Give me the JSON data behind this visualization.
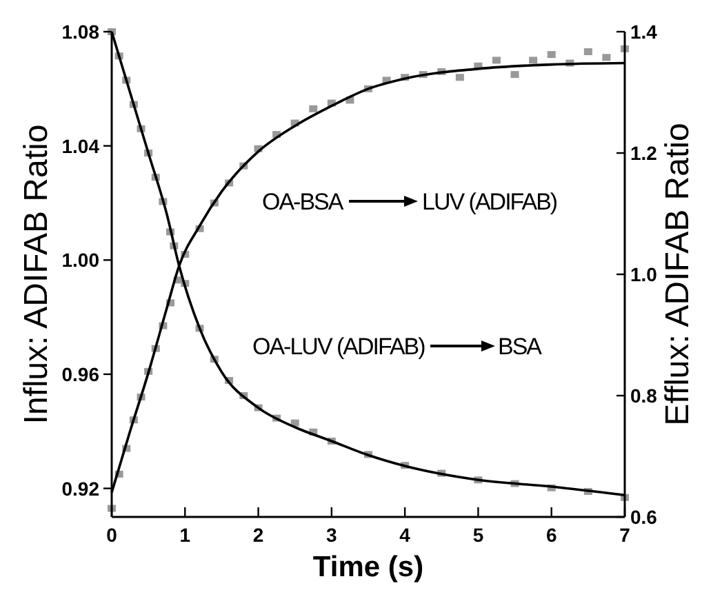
{
  "chart_data": {
    "type": "line",
    "xlabel": "Time (s)",
    "ylabel": "Influx: ADIFAB Ratio",
    "y2label": "Efflux: ADIFAB Ratio",
    "xlim": [
      0,
      7
    ],
    "xticks": [
      0,
      1,
      2,
      3,
      4,
      5,
      6,
      7
    ],
    "ylim": [
      0.91,
      1.08
    ],
    "yticks": [
      0.92,
      0.96,
      {
        "value": 1,
        "label": "1.00"
      },
      1.04,
      1.08
    ],
    "y2lim": [
      0.6,
      1.4
    ],
    "y2ticks": [
      0.6,
      0.8,
      {
        "value": 1,
        "label": "1.0"
      },
      1.2,
      1.4
    ],
    "annotations": [
      "OA-BSA",
      "LUV (ADIFAB)",
      "OA-LUV (ADIFAB)",
      "BSA"
    ],
    "series": [
      {
        "type": "scatter",
        "color": "#999999",
        "marker": "square",
        "x": [
          0,
          0.1,
          0.2,
          0.3,
          0.4,
          0.5,
          0.6,
          0.7,
          0.8,
          0.9,
          1.0,
          1.2,
          1.4,
          1.6,
          1.8,
          2.0,
          2.25,
          2.5,
          2.75,
          3.0,
          3.25,
          3.5,
          3.75,
          4.0,
          4.25,
          4.5,
          4.75,
          5.0,
          5.25,
          5.5,
          5.75,
          6.0,
          6.25,
          6.5,
          6.75,
          7.0
        ],
        "values": [
          0.913,
          0.925,
          0.934,
          0.944,
          0.952,
          0.961,
          0.969,
          0.977,
          0.985,
          0.993,
          1.002,
          1.011,
          1.02,
          1.027,
          1.033,
          1.039,
          1.044,
          1.048,
          1.053,
          1.055,
          1.056,
          1.06,
          1.063,
          1.064,
          1.065,
          1.066,
          1.064,
          1.068,
          1.07,
          1.065,
          1.07,
          1.072,
          1.069,
          1.073,
          1.071,
          1.074
        ]
      },
      {
        "color": "#000000",
        "x": [
          0,
          0.25,
          0.5,
          0.75,
          0.92,
          1.2,
          1.5,
          2,
          2.5,
          3,
          3.5,
          4,
          5,
          6,
          7
        ],
        "values": [
          0.9186,
          0.94,
          0.9605,
          0.983,
          0.998,
          1.012,
          1.024,
          1.038,
          1.047,
          1.054,
          1.06,
          1.0636,
          1.067,
          1.0685,
          1.069
        ]
      },
      {
        "type": "scatter",
        "axis": "y2",
        "color": "#999999",
        "marker": "square",
        "x": [
          0,
          0.1,
          0.2,
          0.3,
          0.4,
          0.5,
          0.6,
          0.7,
          0.8,
          0.85,
          1.0,
          1.2,
          1.4,
          1.6,
          1.8,
          2.0,
          2.25,
          2.5,
          2.75,
          3.0,
          3.5,
          4.0,
          4.5,
          5.0,
          5.5,
          6.0,
          6.5,
          7.0
        ],
        "values": [
          1.4,
          1.36,
          1.32,
          1.28,
          1.24,
          1.2,
          1.16,
          1.12,
          1.07,
          1.047,
          0.985,
          0.911,
          0.86,
          0.825,
          0.8,
          0.78,
          0.763,
          0.755,
          0.74,
          0.725,
          0.703,
          0.685,
          0.672,
          0.661,
          0.655,
          0.648,
          0.642,
          0.632
        ]
      },
      {
        "axis": "y2",
        "color": "#000000",
        "x": [
          0,
          0.25,
          0.5,
          0.75,
          0.92,
          1.2,
          1.5,
          2,
          2.5,
          3,
          3.5,
          4,
          5,
          6,
          7
        ],
        "values": [
          1.4,
          1.3,
          1.2,
          1.1,
          1.014,
          0.911,
          0.839,
          0.78,
          0.748,
          0.725,
          0.702,
          0.684,
          0.661,
          0.65,
          0.636
        ]
      }
    ]
  }
}
